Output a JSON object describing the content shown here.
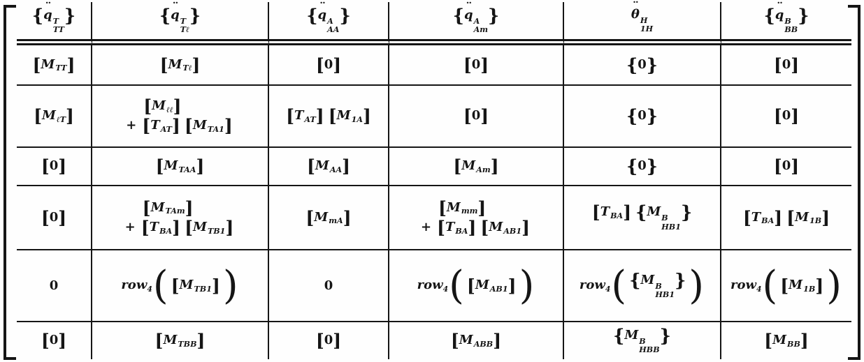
{
  "page": {
    "background": "#fefefe",
    "ink": "#151515",
    "kind": "scanned matrix equation"
  },
  "matrix": {
    "left_bracket": "[",
    "right_bracket": "]",
    "header": [
      [
        [
          {
            "k": "m",
            "w": "{}",
            "b": "q",
            "dd": 1,
            "p": "T",
            "s": "TT"
          }
        ]
      ],
      [
        [
          {
            "k": "m",
            "w": "{}",
            "b": "q",
            "dd": 1,
            "p": "T",
            "s": "Tℓ"
          }
        ]
      ],
      [
        [
          {
            "k": "m",
            "w": "{}",
            "b": "q",
            "dd": 1,
            "p": "A",
            "s": "AA"
          }
        ]
      ],
      [
        [
          {
            "k": "m",
            "w": "{}",
            "b": "q",
            "dd": 1,
            "p": "A",
            "s": "Am"
          }
        ]
      ],
      [
        [
          {
            "k": "m",
            "b": "θ",
            "dd": 1,
            "p": "H",
            "s": "1H"
          }
        ]
      ],
      [
        [
          {
            "k": "m",
            "w": "{}",
            "b": "q",
            "dd": 1,
            "p": "B",
            "s": "BB"
          }
        ]
      ]
    ],
    "rows": [
      [
        [
          [
            {
              "k": "m",
              "w": "[]",
              "b": "M",
              "s": "TT"
            }
          ]
        ],
        [
          [
            {
              "k": "m",
              "w": "[]",
              "b": "M",
              "s": "Tℓ"
            }
          ]
        ],
        [
          [
            {
              "k": "m",
              "w": "[]",
              "b": "0"
            }
          ]
        ],
        [
          [
            {
              "k": "m",
              "w": "[]",
              "b": "0"
            }
          ]
        ],
        [
          [
            {
              "k": "m",
              "w": "{}",
              "b": "0"
            }
          ]
        ],
        [
          [
            {
              "k": "m",
              "w": "[]",
              "b": "0"
            }
          ]
        ]
      ],
      [
        [
          [
            {
              "k": "m",
              "w": "[]",
              "b": "M",
              "s": "ℓT"
            }
          ]
        ],
        [
          [
            {
              "k": "m",
              "w": "[]",
              "b": "M",
              "s": "ℓℓ"
            }
          ],
          [
            {
              "k": "+"
            },
            {
              "k": "m",
              "w": "[]",
              "b": "T",
              "s": "AT"
            },
            {
              "k": "m",
              "w": "[]",
              "b": "M",
              "s": "TA1"
            }
          ]
        ],
        [
          [
            {
              "k": "m",
              "w": "[]",
              "b": "T",
              "s": "AT"
            },
            {
              "k": "m",
              "w": "[]",
              "b": "M",
              "s": "1A"
            }
          ]
        ],
        [
          [
            {
              "k": "m",
              "w": "[]",
              "b": "0"
            }
          ]
        ],
        [
          [
            {
              "k": "m",
              "w": "{}",
              "b": "0"
            }
          ]
        ],
        [
          [
            {
              "k": "m",
              "w": "[]",
              "b": "0"
            }
          ]
        ]
      ],
      [
        [
          [
            {
              "k": "m",
              "w": "[]",
              "b": "0"
            }
          ]
        ],
        [
          [
            {
              "k": "m",
              "w": "[]",
              "b": "M",
              "s": "TAA"
            }
          ]
        ],
        [
          [
            {
              "k": "m",
              "w": "[]",
              "b": "M",
              "s": "AA"
            }
          ]
        ],
        [
          [
            {
              "k": "m",
              "w": "[]",
              "b": "M",
              "s": "Am"
            }
          ]
        ],
        [
          [
            {
              "k": "m",
              "w": "{}",
              "b": "0"
            }
          ]
        ],
        [
          [
            {
              "k": "m",
              "w": "[]",
              "b": "0"
            }
          ]
        ]
      ],
      [
        [
          [
            {
              "k": "m",
              "w": "[]",
              "b": "0"
            }
          ]
        ],
        [
          [
            {
              "k": "m",
              "w": "[]",
              "b": "M",
              "s": "TAm"
            }
          ],
          [
            {
              "k": "+"
            },
            {
              "k": "m",
              "w": "[]",
              "b": "T",
              "s": "BA"
            },
            {
              "k": "m",
              "w": "[]",
              "b": "M",
              "s": "TB1"
            }
          ]
        ],
        [
          [
            {
              "k": "m",
              "w": "[]",
              "b": "M",
              "s": "mA"
            }
          ]
        ],
        [
          [
            {
              "k": "m",
              "w": "[]",
              "b": "M",
              "s": "mm"
            }
          ],
          [
            {
              "k": "+"
            },
            {
              "k": "m",
              "w": "[]",
              "b": "T",
              "s": "BA"
            },
            {
              "k": "m",
              "w": "[]",
              "b": "M",
              "s": "AB1"
            }
          ]
        ],
        [
          [
            {
              "k": "m",
              "w": "[]",
              "b": "T",
              "s": "BA"
            },
            {
              "k": "m",
              "w": "{}",
              "b": "M",
              "p": "B",
              "s": "HB1"
            }
          ]
        ],
        [
          [
            {
              "k": "m",
              "w": "[]",
              "b": "T",
              "s": "BA"
            },
            {
              "k": "m",
              "w": "[]",
              "b": "M",
              "s": "1B"
            }
          ]
        ]
      ],
      [
        [
          [
            {
              "k": "m",
              "b": "0"
            }
          ]
        ],
        [
          [
            {
              "k": "f",
              "f": "row",
              "fs": "4",
              "a": {
                "k": "m",
                "w": "[]",
                "b": "M",
                "s": "TB1"
              }
            }
          ]
        ],
        [
          [
            {
              "k": "m",
              "b": "0"
            }
          ]
        ],
        [
          [
            {
              "k": "f",
              "f": "row",
              "fs": "4",
              "a": {
                "k": "m",
                "w": "[]",
                "b": "M",
                "s": "AB1"
              }
            }
          ]
        ],
        [
          [
            {
              "k": "f",
              "f": "row",
              "fs": "4",
              "a": {
                "k": "m",
                "w": "{}",
                "b": "M",
                "p": "B",
                "s": "HB1"
              }
            }
          ]
        ],
        [
          [
            {
              "k": "f",
              "f": "row",
              "fs": "4",
              "a": {
                "k": "m",
                "w": "[]",
                "b": "M",
                "s": "1B"
              }
            }
          ]
        ]
      ],
      [
        [
          [
            {
              "k": "m",
              "w": "[]",
              "b": "0"
            }
          ]
        ],
        [
          [
            {
              "k": "m",
              "w": "[]",
              "b": "M",
              "s": "TBB"
            }
          ]
        ],
        [
          [
            {
              "k": "m",
              "w": "[]",
              "b": "0"
            }
          ]
        ],
        [
          [
            {
              "k": "m",
              "w": "[]",
              "b": "M",
              "s": "ABB"
            }
          ]
        ],
        [
          [
            {
              "k": "m",
              "w": "{}",
              "b": "M",
              "p": "B",
              "s": "HBB"
            }
          ]
        ],
        [
          [
            {
              "k": "m",
              "w": "[]",
              "b": "M",
              "s": "BB"
            }
          ]
        ]
      ]
    ]
  }
}
